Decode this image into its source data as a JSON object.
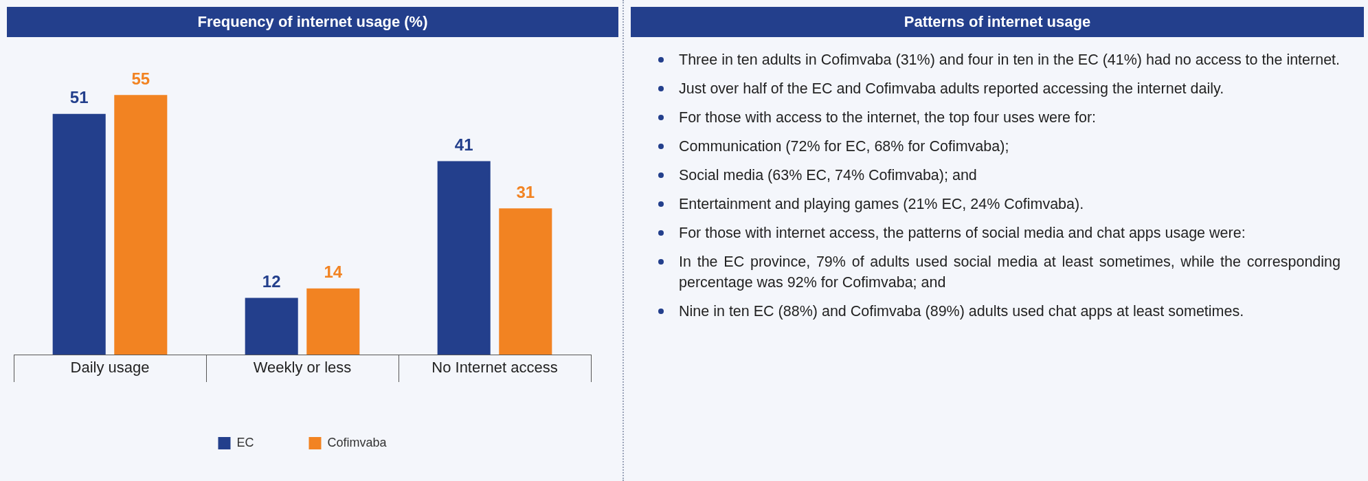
{
  "chart_data": [
    {
      "type": "bar",
      "title": "Frequency of internet usage (%)",
      "categories": [
        "Daily usage",
        "Weekly or less",
        "No Internet access"
      ],
      "series": [
        {
          "name": "EC",
          "color": "#233f8c",
          "values": [
            51,
            12,
            41
          ]
        },
        {
          "name": "Cofimvaba",
          "color": "#f28322",
          "values": [
            55,
            14,
            31
          ]
        }
      ],
      "data_labels": true,
      "legend": "bottom"
    },
    {
      "type": "other",
      "title": "Patterns of internet usage",
      "annotations": [
        "Three in ten adults in Cofimvaba (31%) and four in ten in the EC (41%) had no access to the internet.",
        "Just over half of the EC and Cofimvaba adults reported accessing the internet daily.",
        "For those with access to the internet, the top four uses were for:",
        "Communication (72% for EC, 68% for Cofimvaba);",
        "Social media (63% EC, 74% Cofimvaba); and",
        "Entertainment and playing games (21% EC, 24% Cofimvaba).",
        "For those with internet access, the patterns of social media and chat apps usage were:",
        "In the EC province, 79% of adults used social media at least sometimes, while the corresponding percentage was 92% for Cofimvaba; and",
        "Nine in ten EC (88%) and Cofimvaba (89%) adults used chat apps at least sometimes."
      ]
    }
  ]
}
